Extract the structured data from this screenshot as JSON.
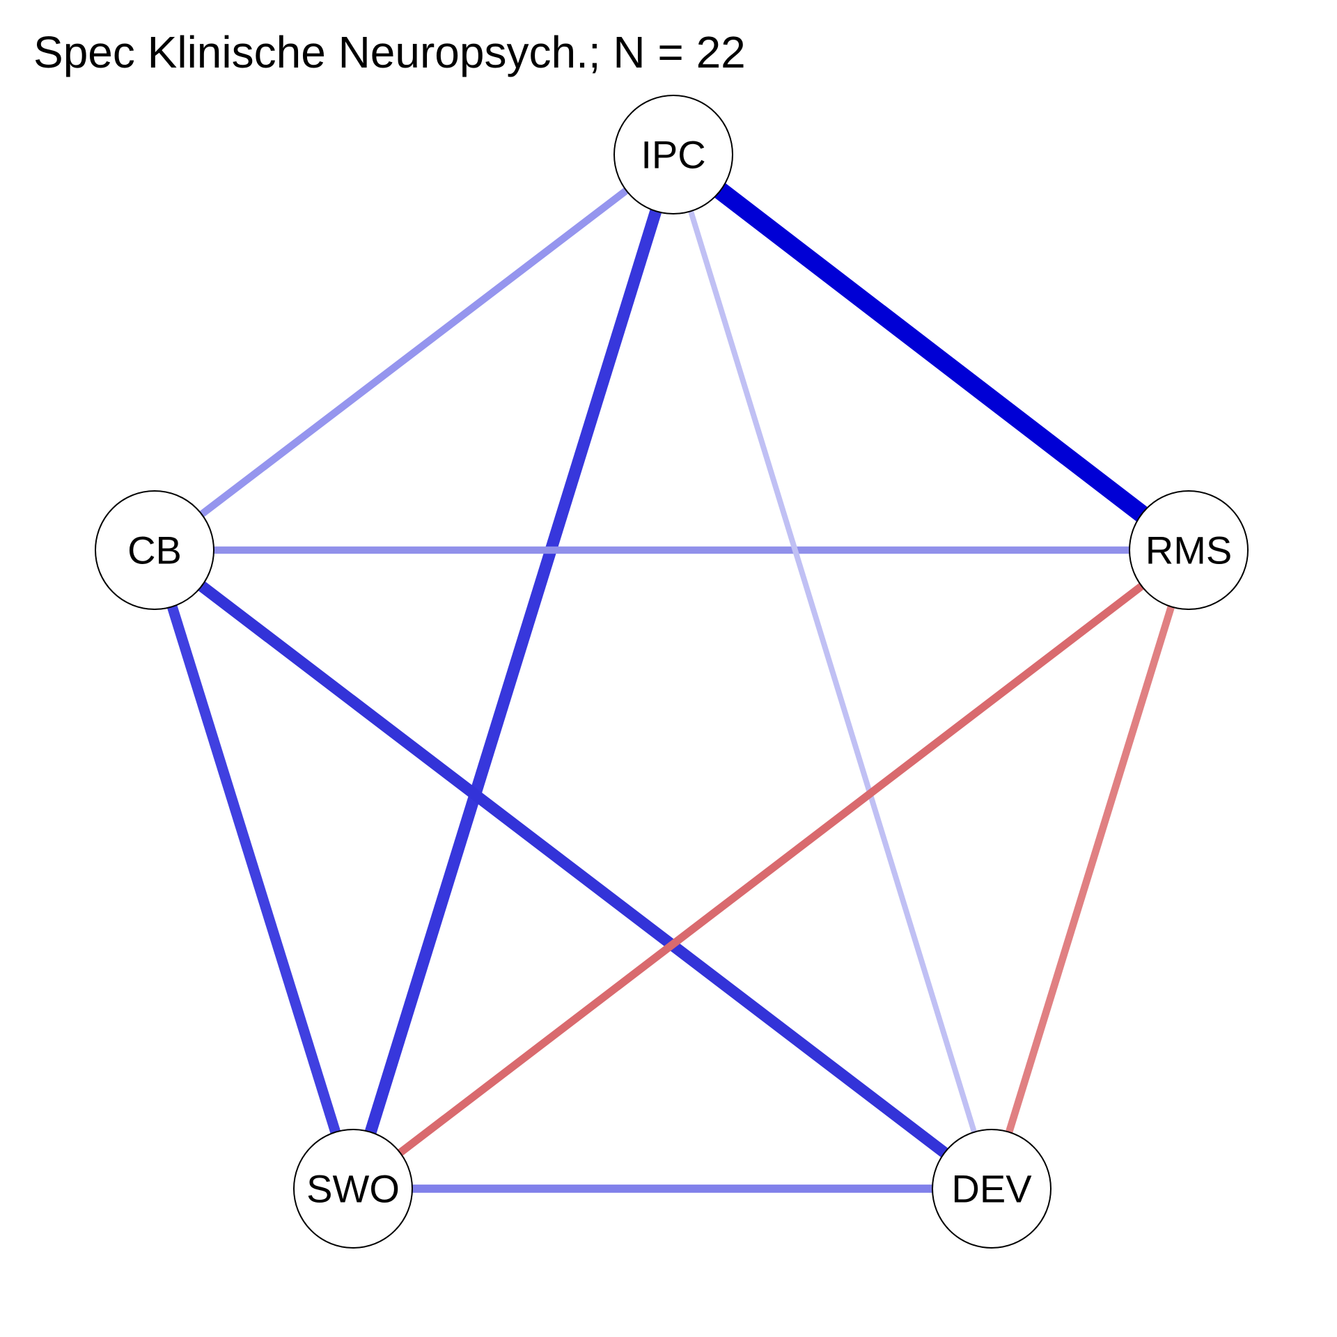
{
  "title": "Spec Klinische Neuropsych.; N = 22",
  "nodes": [
    {
      "id": "IPC",
      "label": "IPC"
    },
    {
      "id": "RMS",
      "label": "RMS"
    },
    {
      "id": "DEV",
      "label": "DEV"
    },
    {
      "id": "SWO",
      "label": "SWO"
    },
    {
      "id": "CB",
      "label": "CB"
    }
  ],
  "edges": [
    {
      "from": "IPC",
      "to": "RMS",
      "sign": "positive",
      "strength": 1.0,
      "color": "#0000d5"
    },
    {
      "from": "IPC",
      "to": "SWO",
      "sign": "positive",
      "strength": 0.6,
      "color": "#3737dc"
    },
    {
      "from": "CB",
      "to": "DEV",
      "sign": "positive",
      "strength": 0.57,
      "color": "#3333d8"
    },
    {
      "from": "CB",
      "to": "SWO",
      "sign": "positive",
      "strength": 0.5,
      "color": "#4040e0"
    },
    {
      "from": "IPC",
      "to": "CB",
      "sign": "positive",
      "strength": 0.3,
      "color": "#9595ee"
    },
    {
      "from": "CB",
      "to": "RMS",
      "sign": "positive",
      "strength": 0.3,
      "color": "#9090ea"
    },
    {
      "from": "SWO",
      "to": "DEV",
      "sign": "positive",
      "strength": 0.35,
      "color": "#8080ea"
    },
    {
      "from": "IPC",
      "to": "DEV",
      "sign": "positive",
      "strength": 0.18,
      "color": "#c0c0f4"
    },
    {
      "from": "RMS",
      "to": "SWO",
      "sign": "negative",
      "strength": 0.33,
      "color": "#d96a6e"
    },
    {
      "from": "RMS",
      "to": "DEV",
      "sign": "negative",
      "strength": 0.3,
      "color": "#e08082"
    }
  ]
}
